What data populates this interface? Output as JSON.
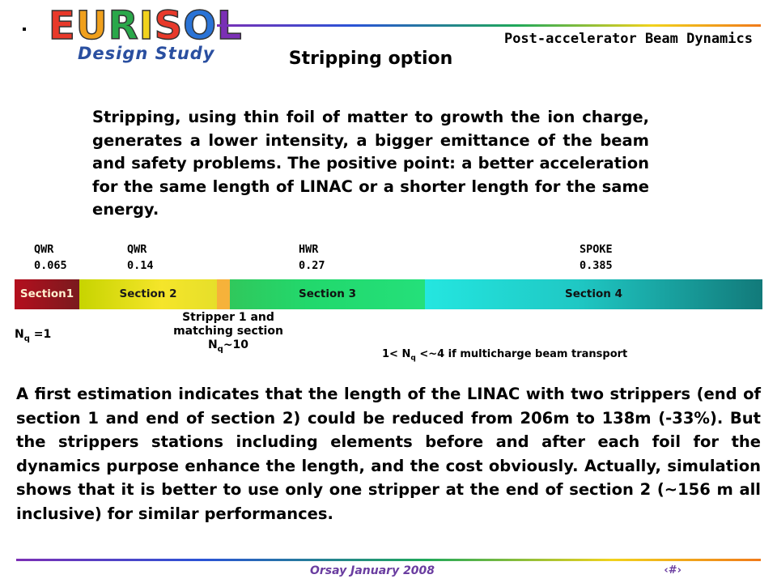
{
  "logo": {
    "letters": [
      {
        "ch": "E",
        "color": "#e8392a"
      },
      {
        "ch": "U",
        "color": "#f0a01c"
      },
      {
        "ch": "R",
        "color": "#2aa84a"
      },
      {
        "ch": "I",
        "color": "#f1d21c"
      },
      {
        "ch": "S",
        "color": "#e8392a"
      },
      {
        "ch": "O",
        "color": "#2a73d6"
      },
      {
        "ch": "L",
        "color": "#7b2fb5"
      }
    ],
    "subtitle": "Design Study"
  },
  "header": {
    "right_title": "Post-accelerator Beam Dynamics",
    "slide_title": "Stripping option"
  },
  "body": {
    "para1": "Stripping, using thin foil of matter to growth the ion charge, generates a lower intensity, a bigger emittance of the beam and safety problems. The positive point: a better acceleration for the same length of LINAC or a shorter length for the same energy.",
    "para2": "A first estimation indicates that the length of the LINAC with two strippers (end of section 1 and end of section 2) could be reduced from 206m to 138m (-33%). But the strippers stations including elements before and after each foil for the dynamics purpose enhance the length, and the cost obviously. Actually, simulation shows that it is better to use only one stripper at the end of section 2  (~156 m all inclusive) for similar performances."
  },
  "diagram": {
    "cavities": [
      {
        "type": "QWR",
        "beta": "0.065"
      },
      {
        "type": "QWR",
        "beta": "0.14"
      },
      {
        "type": "HWR",
        "beta": "0.27"
      },
      {
        "type": "SPOKE",
        "beta": "0.385"
      }
    ],
    "sections": [
      "Section1",
      "Section 2",
      "Section 3",
      "Section 4"
    ],
    "stripper_line1": "Stripper 1 and",
    "stripper_line2": "matching section",
    "nq_symbol": "N",
    "nq_sub": "q",
    "nq_section1_val": " =1",
    "nq_stripper_val": "~10",
    "nq_multi_prefix": "1< N",
    "nq_multi_sub": "q",
    "nq_multi_suffix": " <~4 if multicharge beam transport"
  },
  "footer": {
    "date": "Orsay January 2008",
    "page_number": "‹#›"
  }
}
